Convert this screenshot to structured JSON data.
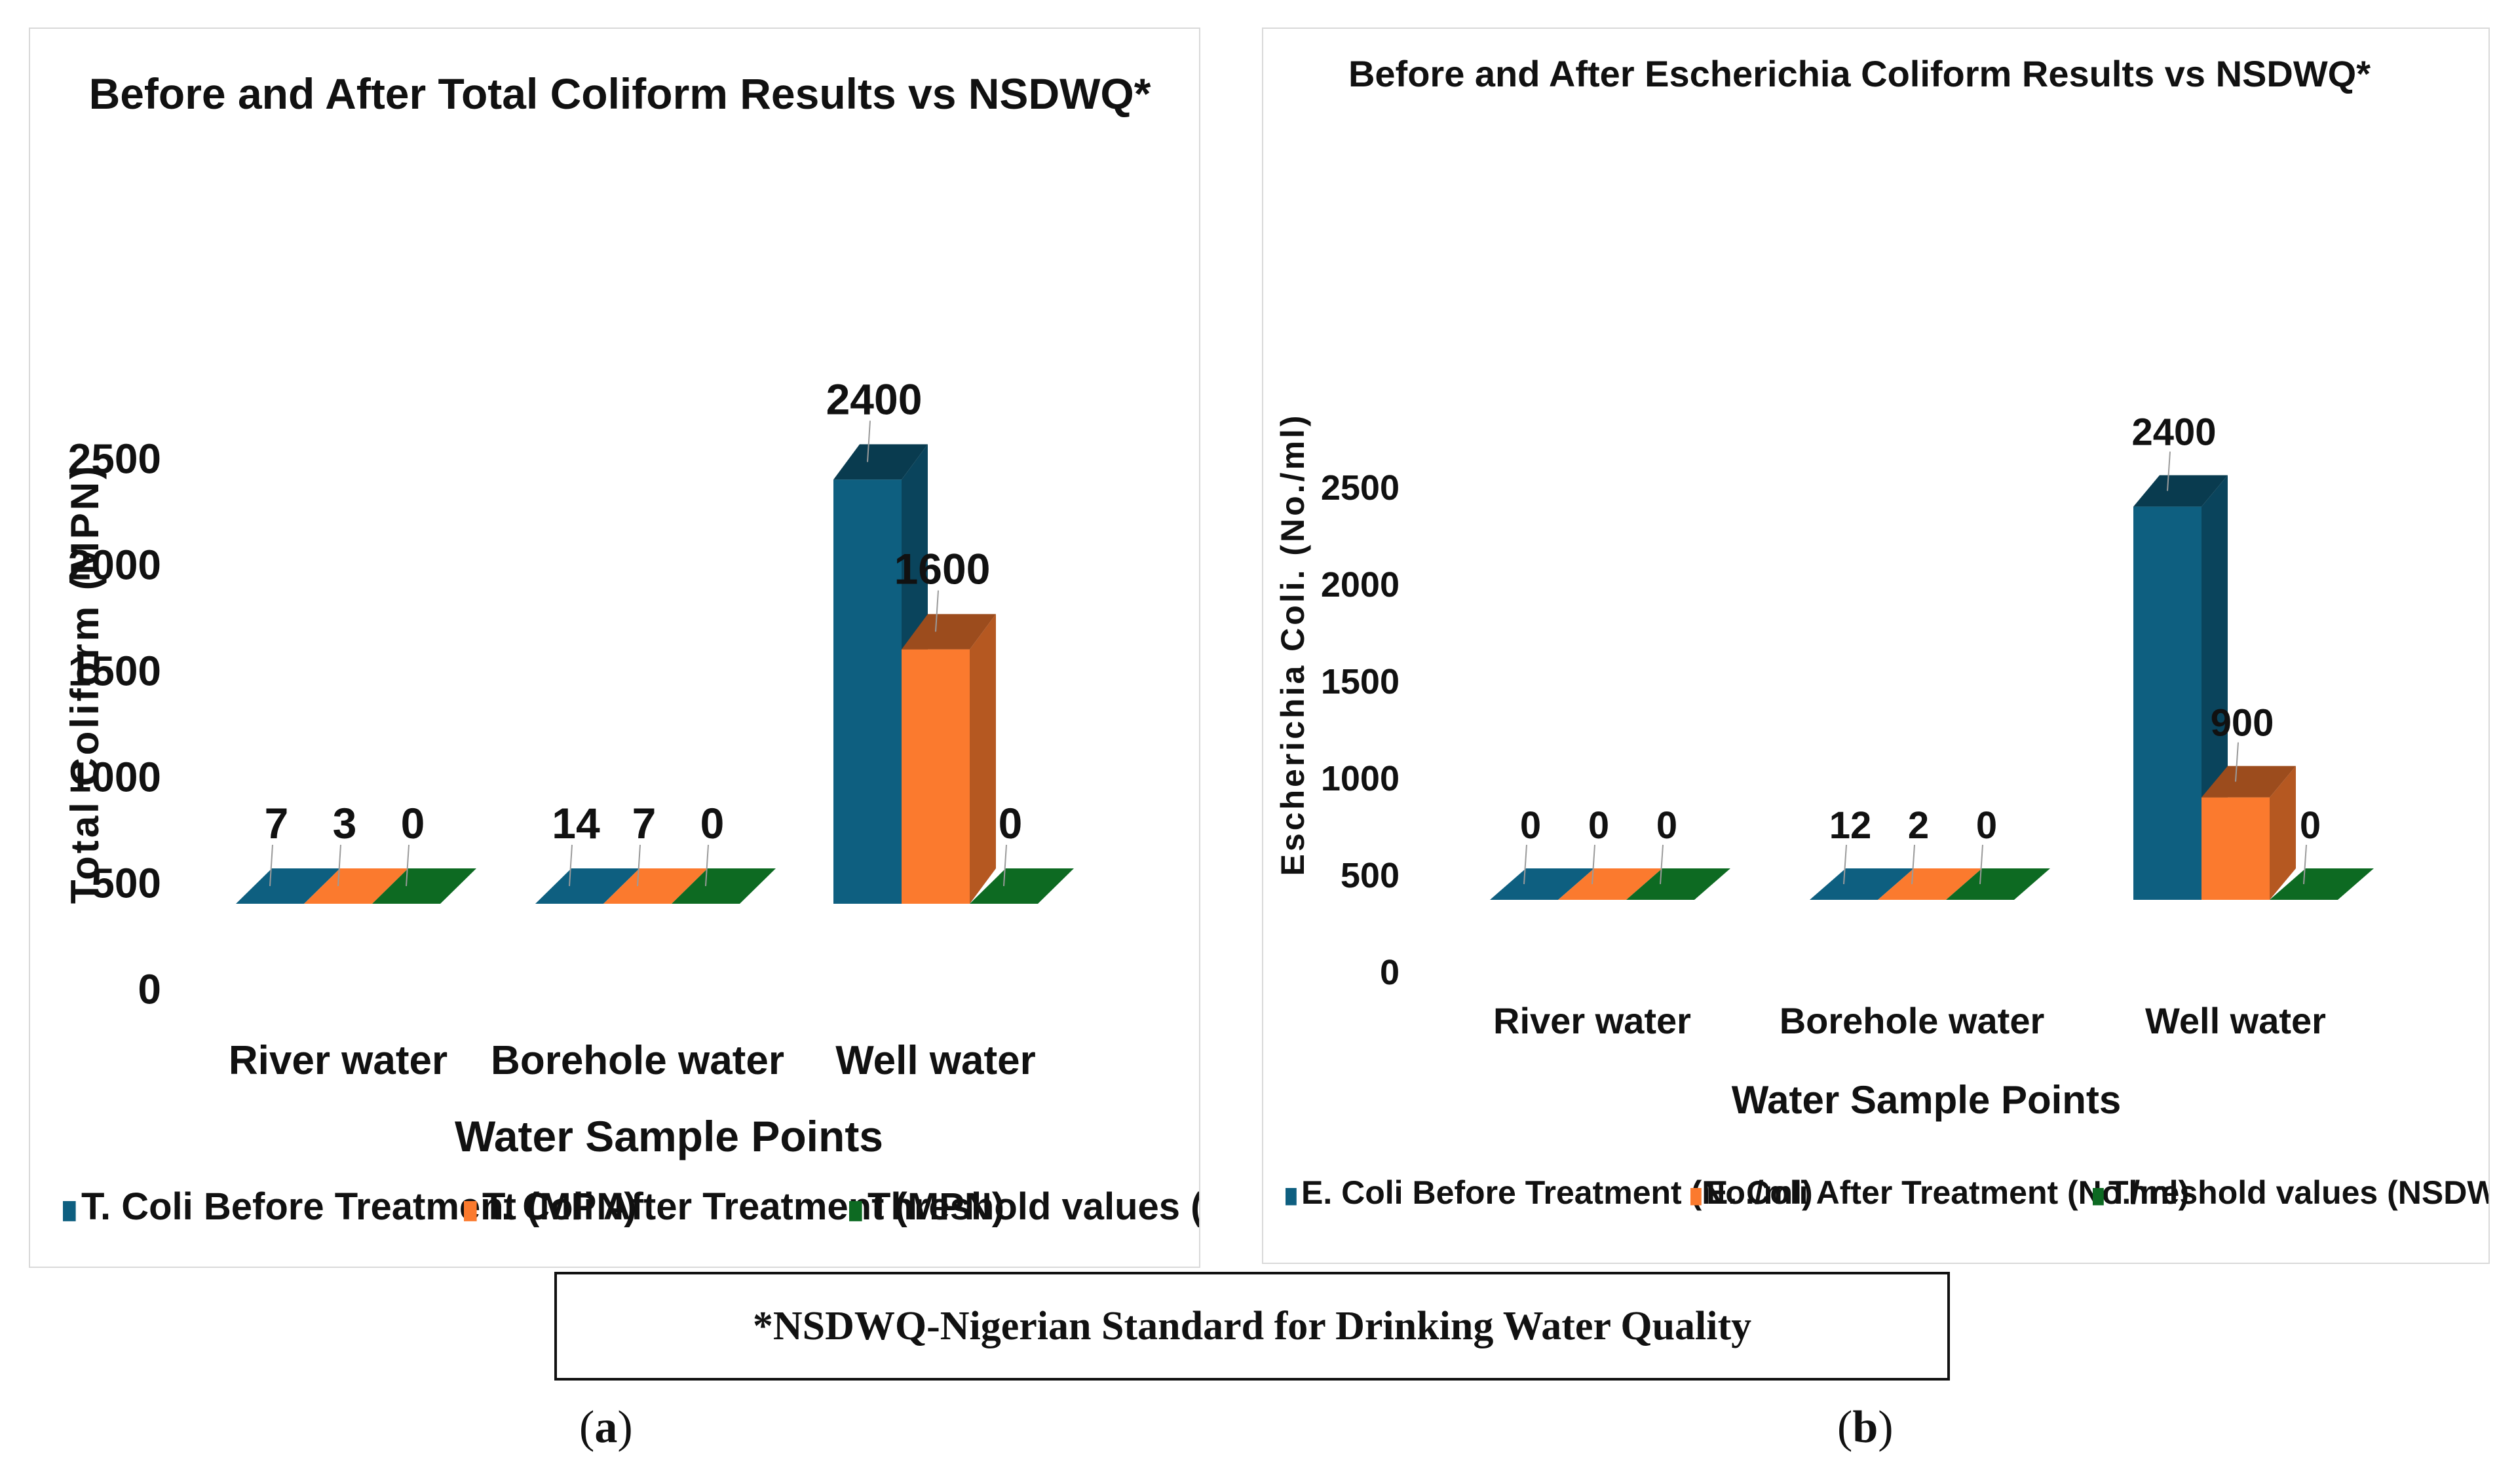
{
  "footnote": "*NSDWQ-Nigerian Standard for Drinking Water Quality",
  "panel_labels": [
    {
      "open": "(",
      "letter": "a",
      "close": ")"
    },
    {
      "open": "(",
      "letter": "b",
      "close": ")"
    }
  ],
  "colors": {
    "before": "#0e5f80",
    "after": "#fb7a2e",
    "threshold": "#0d6a22"
  },
  "chart_data": [
    {
      "id": "a",
      "type": "bar",
      "style": "3d-clustered",
      "title": "Before and After Total Coliform Results vs NSDWQ*",
      "xlabel": "Water Sample Points",
      "ylabel": "Total Coliform (MPN)",
      "ylim": [
        0,
        2500
      ],
      "yticks": [
        0,
        500,
        1000,
        1500,
        2000,
        2500
      ],
      "categories": [
        "River water",
        "Borehole water",
        "Well water"
      ],
      "series": [
        {
          "name": "T. Coli Before Treatment (MPN)",
          "values": [
            7,
            14,
            2400
          ],
          "color": "#0e5f80"
        },
        {
          "name": "T. Coli After Treatment (MPN)",
          "values": [
            3,
            7,
            1600
          ],
          "color": "#fb7a2e"
        },
        {
          "name": "Threshold values (NSDWQ)",
          "values": [
            0,
            0,
            0
          ],
          "color": "#0d6a22"
        }
      ],
      "legend": "bottom"
    },
    {
      "id": "b",
      "type": "bar",
      "style": "3d-clustered",
      "title": "Before and After Escherichia Coliform Results vs NSDWQ*",
      "xlabel": "Water Sample Points",
      "ylabel": "Escherichia Coli. (No./ml)",
      "ylim": [
        0,
        2500
      ],
      "yticks": [
        0,
        500,
        1000,
        1500,
        2000,
        2500
      ],
      "categories": [
        "River water",
        "Borehole water",
        "Well water"
      ],
      "series": [
        {
          "name": "E. Coli Before Treatment (No./ml)",
          "values": [
            0,
            12,
            2400
          ],
          "color": "#0e5f80"
        },
        {
          "name": "E. Coli After Treatment (No./ml)",
          "values": [
            0,
            2,
            900
          ],
          "color": "#fb7a2e"
        },
        {
          "name": "Threshold values (NSDWQ)",
          "values": [
            0,
            0,
            0
          ],
          "color": "#0d6a22"
        }
      ],
      "legend": "bottom"
    }
  ]
}
